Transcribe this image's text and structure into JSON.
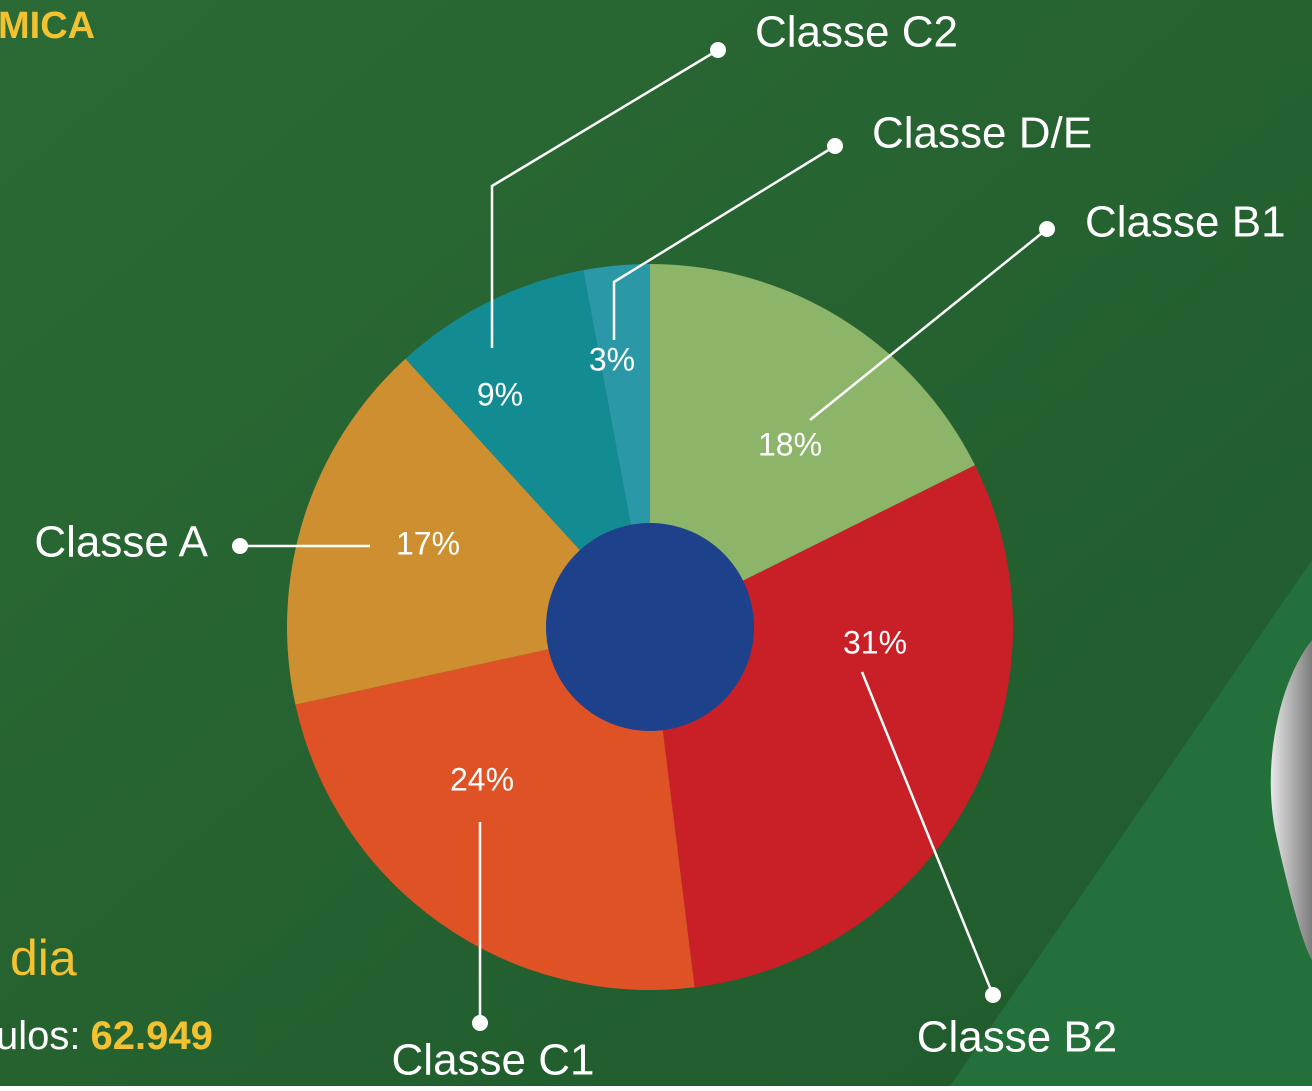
{
  "chart_data": {
    "type": "pie",
    "categories": [
      "Classe B1",
      "Classe B2",
      "Classe C1",
      "Classe A",
      "Classe C2",
      "Classe D/E"
    ],
    "values": [
      18,
      31,
      24,
      17,
      9,
      3
    ],
    "value_labels": [
      "18%",
      "31%",
      "24%",
      "17%",
      "9%",
      "3%"
    ],
    "colors": [
      "#8db56a",
      "#c91f27",
      "#df5226",
      "#cd8f30",
      "#138b93",
      "#2a98a6"
    ],
    "annotations": [
      "MICA",
      "dia",
      "ulos:",
      "62.949"
    ]
  }
}
